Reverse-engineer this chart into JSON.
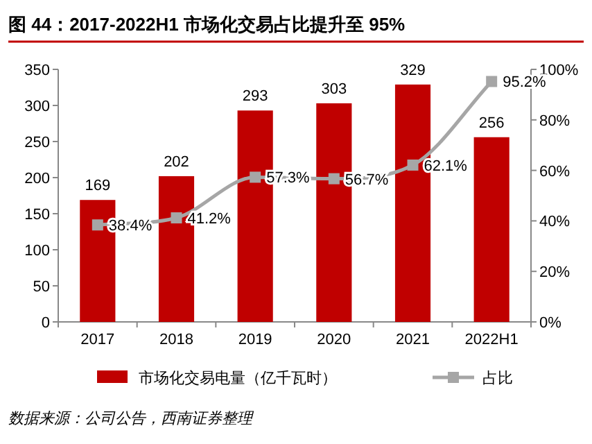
{
  "chart_data": {
    "type": "bar",
    "title": "图 44：2017-2022H1 市场化交易占比提升至 95%",
    "categories": [
      "2017",
      "2018",
      "2019",
      "2020",
      "2021",
      "2022H1"
    ],
    "series": [
      {
        "name": "市场化交易电量（亿千瓦时）",
        "color": "#c00000",
        "values": [
          169,
          202,
          293,
          303,
          329,
          256
        ],
        "value_labels": [
          "169",
          "202",
          "293",
          "303",
          "329",
          "256"
        ]
      },
      {
        "name": "占比",
        "type": "line",
        "axis": "y2",
        "color": "#a6a6a6",
        "marker": "square",
        "values": [
          38.4,
          41.2,
          57.3,
          56.7,
          62.1,
          95.2
        ],
        "value_labels": [
          "38.4%",
          "41.2%",
          "57.3%",
          "56.7%",
          "62.1%",
          "95.2%"
        ]
      }
    ],
    "ylim": [
      0,
      350
    ],
    "yticks": [
      0,
      50,
      100,
      150,
      200,
      250,
      300,
      350
    ],
    "y2lim": [
      0,
      100
    ],
    "y2ticks": [
      {
        "value": 0,
        "label": "0%"
      },
      {
        "value": 20,
        "label": "20%"
      },
      {
        "value": 40,
        "label": "40%"
      },
      {
        "value": 60,
        "label": "60%"
      },
      {
        "value": 80,
        "label": "80%"
      },
      {
        "value": 100,
        "label": "100%"
      }
    ],
    "legend": "bottom",
    "grid": false,
    "annotations": [
      "数据来源：公司公告，西南证券整理"
    ]
  }
}
